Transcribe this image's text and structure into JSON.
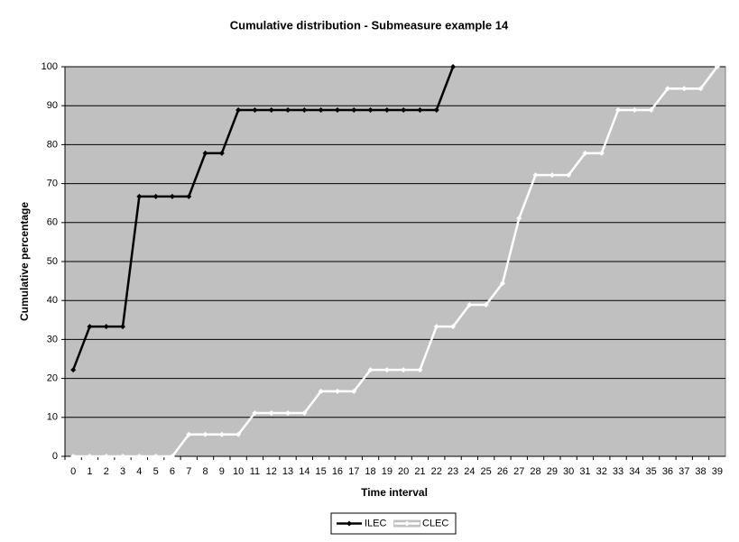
{
  "chart_data": {
    "type": "line",
    "title": "Cumulative distribution - Submeasure example 14",
    "x_label": "Time interval",
    "y_label": "Cumulative percentage",
    "categories": [
      "0",
      "1",
      "2",
      "3",
      "4",
      "5",
      "6",
      "7",
      "8",
      "9",
      "10",
      "11",
      "12",
      "13",
      "14",
      "15",
      "16",
      "17",
      "18",
      "19",
      "20",
      "21",
      "22",
      "23",
      "24",
      "25",
      "26",
      "27",
      "28",
      "29",
      "30",
      "31",
      "32",
      "33",
      "34",
      "35",
      "36",
      "37",
      "38",
      "39"
    ],
    "series": [
      {
        "name": "ILEC",
        "color": "#000000",
        "values": [
          22.2,
          33.3,
          33.3,
          33.3,
          66.7,
          66.7,
          66.7,
          66.7,
          77.8,
          77.8,
          88.9,
          88.9,
          88.9,
          88.9,
          88.9,
          88.9,
          88.9,
          88.9,
          88.9,
          88.9,
          88.9,
          88.9,
          88.9,
          100,
          null,
          null,
          null,
          null,
          null,
          null,
          null,
          null,
          null,
          null,
          null,
          null,
          null,
          null,
          null,
          null
        ]
      },
      {
        "name": "CLEC",
        "color": "#ffffff",
        "values": [
          0,
          0,
          0,
          0,
          0,
          0,
          0,
          5.6,
          5.6,
          5.6,
          5.6,
          11.1,
          11.1,
          11.1,
          11.1,
          16.7,
          16.7,
          16.7,
          22.2,
          22.2,
          22.2,
          22.2,
          33.3,
          33.3,
          38.9,
          38.9,
          44.4,
          61.1,
          72.2,
          72.2,
          72.2,
          77.8,
          77.8,
          88.9,
          88.9,
          88.9,
          94.4,
          94.4,
          94.4,
          100
        ]
      }
    ],
    "ylim": [
      0,
      100
    ],
    "yticks": [
      0,
      10,
      20,
      30,
      40,
      50,
      60,
      70,
      80,
      90,
      100
    ],
    "grid": true,
    "plot_background": "#c0c0c0",
    "legend": "bottom"
  }
}
